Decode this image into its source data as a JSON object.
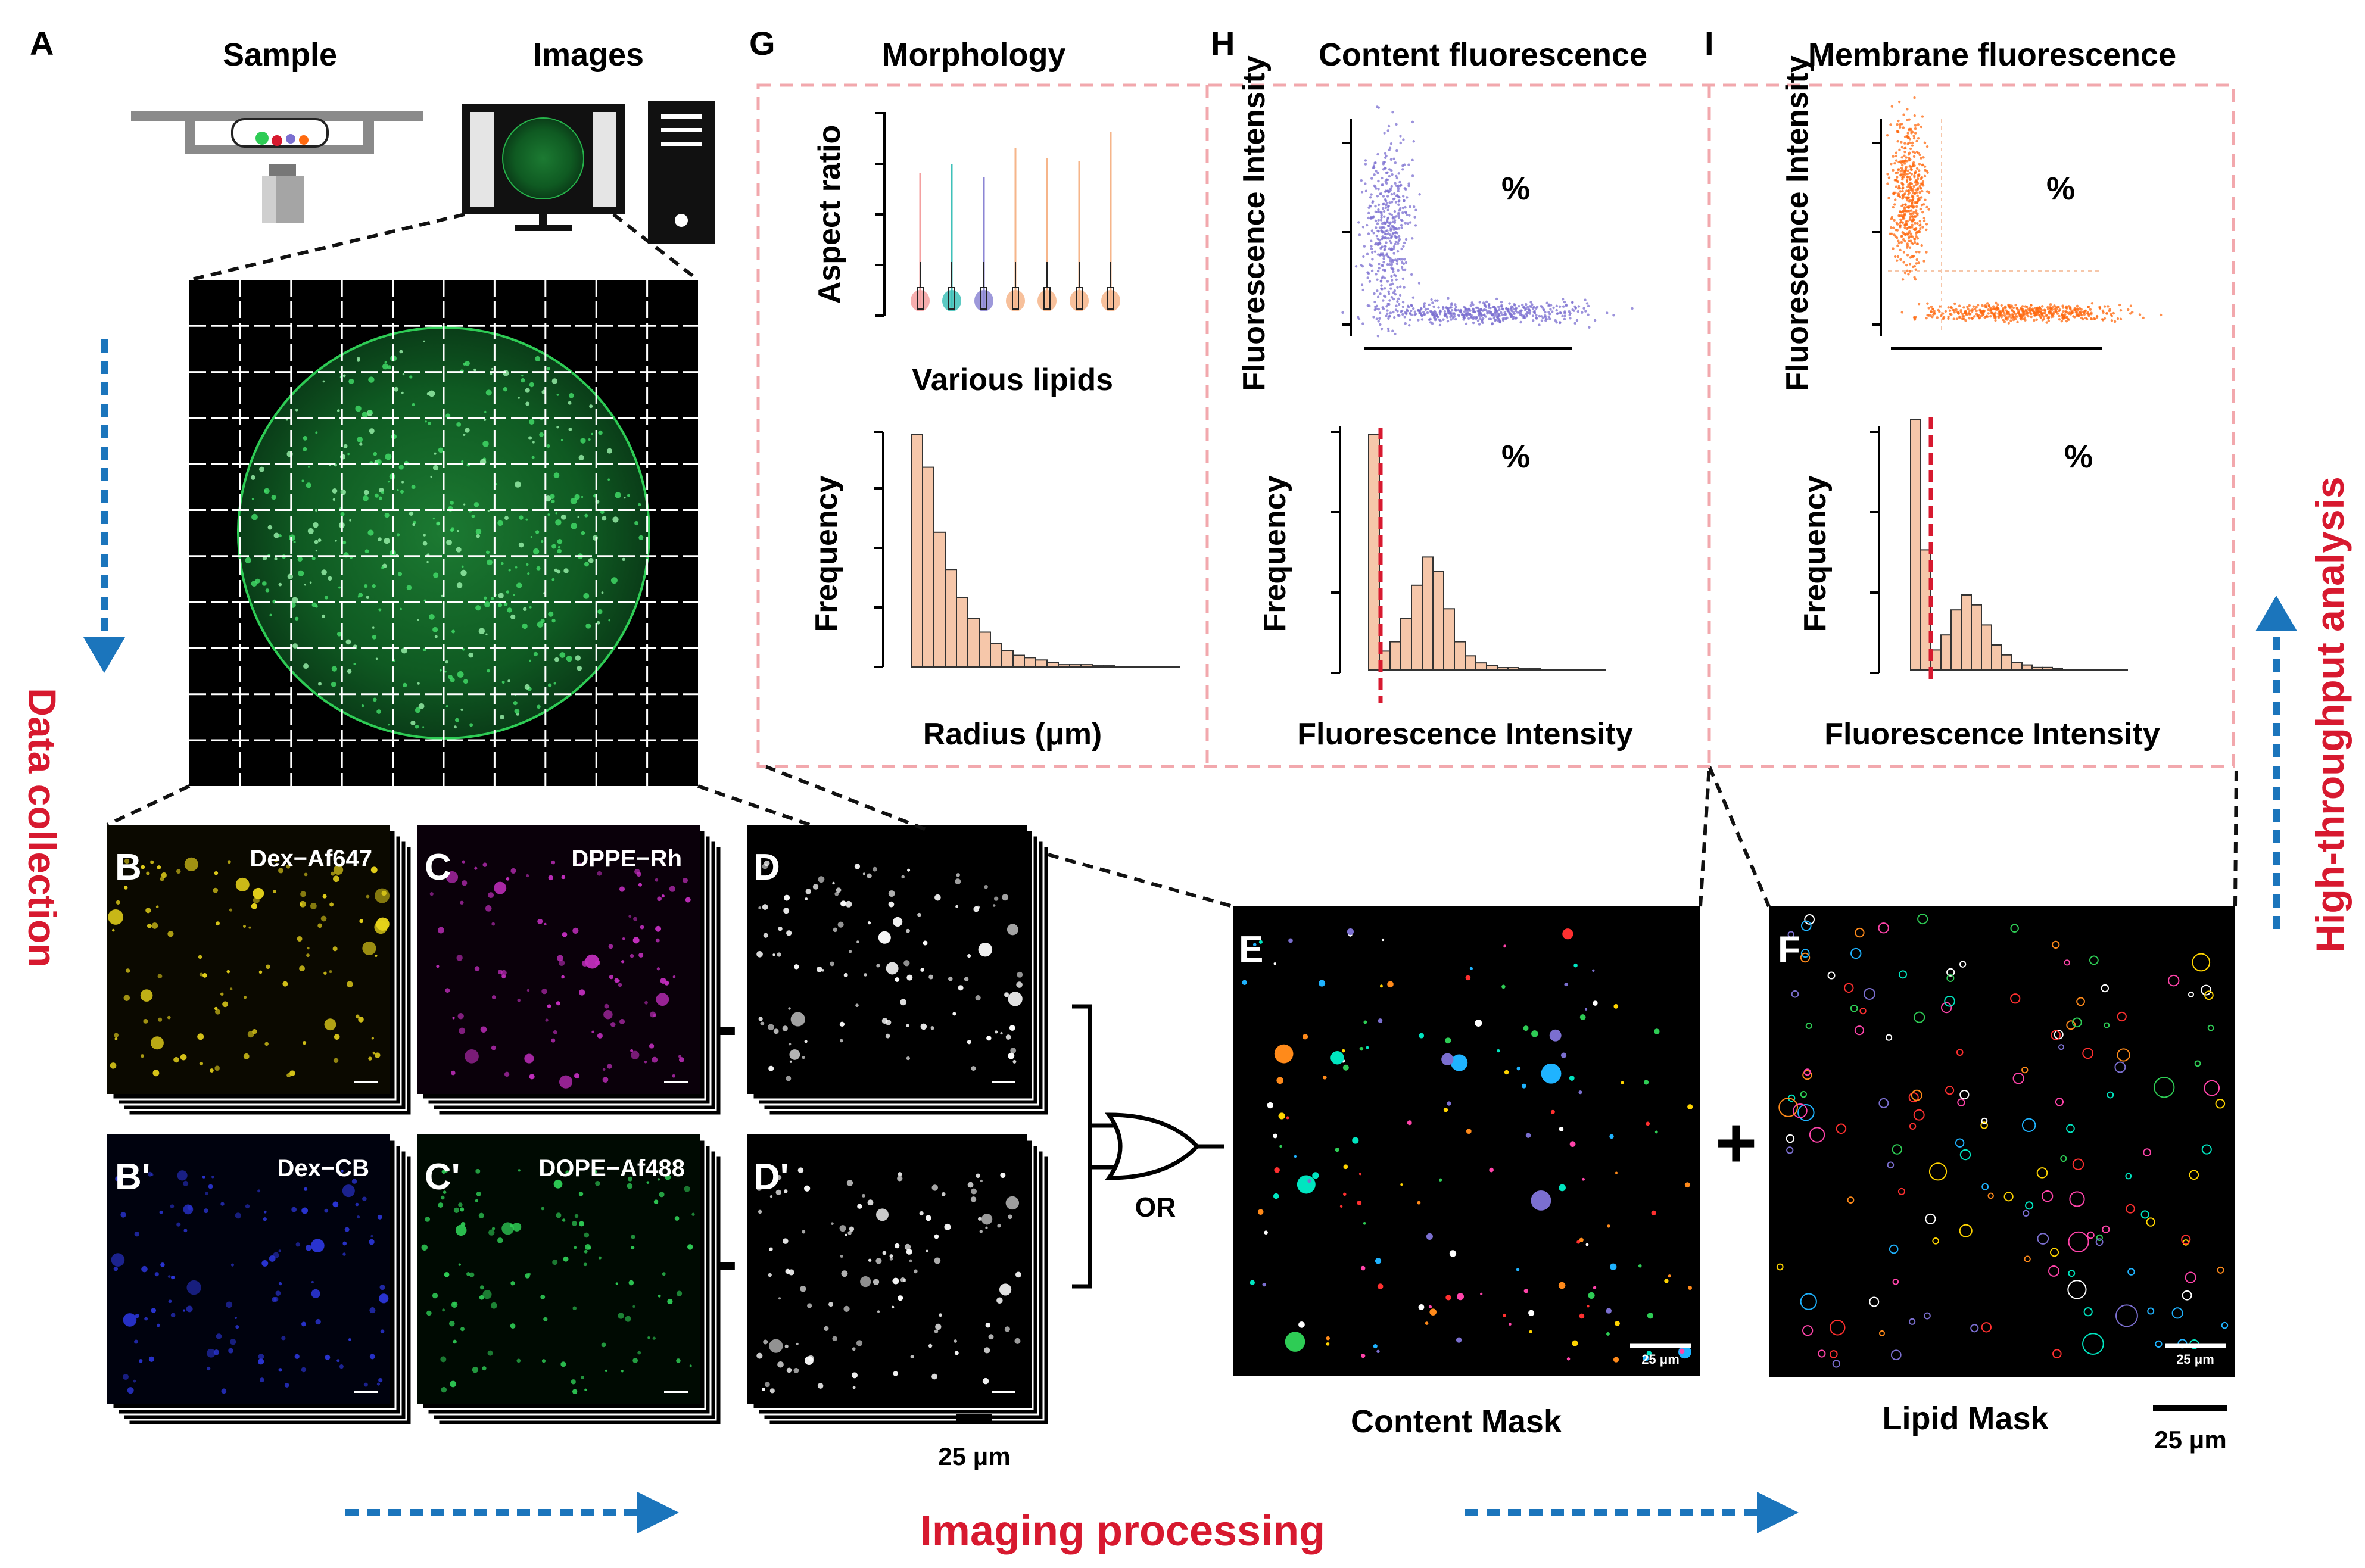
{
  "panels": {
    "A": "A",
    "B": "B",
    "Bp": "B'",
    "C": "C",
    "Cp": "C'",
    "D": "D",
    "Dp": "D'",
    "E": "E",
    "F": "F",
    "G": "G",
    "H": "H",
    "I": "I"
  },
  "section_a": {
    "sample_title": "Sample",
    "images_title": "Images"
  },
  "channels": {
    "B": "Dex−Af647",
    "Bp": "Dex−CB",
    "C": "DPPE−Rh",
    "Cp": "DOPE−Af488"
  },
  "scale_small": "25 μm",
  "scale_large": "25 μm",
  "logic": {
    "minus": "-",
    "or": "OR",
    "plus": "+"
  },
  "masks": {
    "content": "Content Mask",
    "lipid": "Lipid Mask"
  },
  "arrows": {
    "data_collection": "Data collection",
    "imaging_processing": "Imaging processing",
    "high_throughput": "High-throughput analysis"
  },
  "analysis": {
    "G": {
      "title": "Morphology",
      "y_top": "Aspect ratio",
      "x_top": "Various lipids",
      "y_bottom": "Frequency",
      "x_bottom": "Radius (μm)"
    },
    "H": {
      "title": "Content fluorescence",
      "y_top": "Fluorescence Intensity",
      "percent_top": "%",
      "y_bottom": "Frequency",
      "percent_bottom": "%",
      "x_bottom": "Fluorescence Intensity"
    },
    "I": {
      "title": "Membrane fluorescence",
      "y_top": "Fluorescence Intensity",
      "percent_top": "%",
      "y_bottom": "Frequency",
      "percent_bottom": "%",
      "x_bottom": "Fluorescence Intensity"
    }
  },
  "colors": {
    "red": "#d7192f",
    "blue_arrow": "#1b75bc",
    "green": "#2ecc55",
    "yellow": "#e6d21a",
    "blue": "#2a35d6",
    "magenta": "#c42ec0",
    "purple": "#7b6fd0",
    "orange": "#ff6a10",
    "peach": "#f6c7aa",
    "dash_pink": "#f2a8ad"
  },
  "chart_data": [
    {
      "type": "bar",
      "title": "Radius (μm)",
      "xlabel": "Radius (μm)",
      "ylabel": "Frequency",
      "values": [
        100,
        86,
        58,
        42,
        30,
        21,
        15,
        10,
        7,
        5,
        4,
        3,
        2,
        1,
        1,
        1,
        0.5,
        0.5
      ]
    },
    {
      "type": "bar",
      "title": "Content fluorescence histogram",
      "xlabel": "Fluorescence Intensity",
      "ylabel": "Frequency",
      "values": [
        100,
        8,
        12,
        22,
        36,
        48,
        42,
        26,
        12,
        6,
        3,
        2,
        1,
        1,
        0.5,
        0.5
      ]
    },
    {
      "type": "bar",
      "title": "Membrane fluorescence histogram",
      "xlabel": "Fluorescence Intensity",
      "ylabel": "Frequency",
      "values": [
        100,
        48,
        8,
        14,
        24,
        30,
        26,
        18,
        10,
        6,
        3,
        2,
        1,
        1,
        0.5
      ]
    }
  ]
}
